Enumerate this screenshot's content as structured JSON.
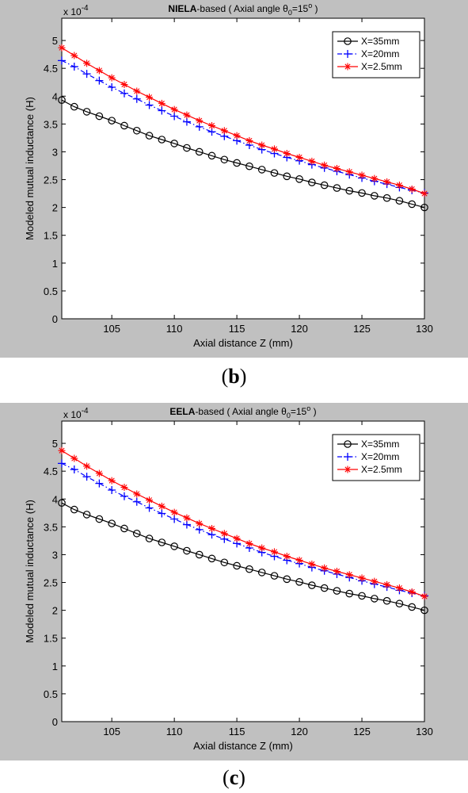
{
  "chart_data": [
    {
      "type": "line",
      "title_bold": "NIELA",
      "title_rest": "-based  ( Axial angle θ",
      "title_sub": "0",
      "title_eq": "=15",
      "title_sup": "o",
      "title_end": " )",
      "exponent_base": "x 10",
      "exponent_power": "-4",
      "xlabel": "Axial distance  Z (mm)",
      "ylabel": "Modeled mutual inductance (H)",
      "xlim": [
        101,
        130
      ],
      "ylim": [
        0,
        5.4
      ],
      "xticks": [
        105,
        110,
        115,
        120,
        125,
        130
      ],
      "yticks": [
        0,
        0.5,
        1,
        1.5,
        2,
        2.5,
        3,
        3.5,
        4,
        4.5,
        5
      ],
      "legend_position": "top-right",
      "x": [
        101,
        102,
        103,
        104,
        105,
        106,
        107,
        108,
        109,
        110,
        111,
        112,
        113,
        114,
        115,
        116,
        117,
        118,
        119,
        120,
        121,
        122,
        123,
        124,
        125,
        126,
        127,
        128,
        129,
        130
      ],
      "series": [
        {
          "name": "X=35mm",
          "color": "#000000",
          "marker": "circle",
          "dash": "solid",
          "values": [
            3.93,
            3.81,
            3.72,
            3.64,
            3.56,
            3.47,
            3.38,
            3.29,
            3.22,
            3.15,
            3.07,
            3.0,
            2.93,
            2.86,
            2.8,
            2.74,
            2.68,
            2.62,
            2.56,
            2.51,
            2.45,
            2.4,
            2.35,
            2.3,
            2.26,
            2.21,
            2.17,
            2.12,
            2.06,
            2.0
          ]
        },
        {
          "name": "X=20mm",
          "color": "#0000ff",
          "marker": "plus",
          "dash": "dashdot",
          "values": [
            4.64,
            4.53,
            4.4,
            4.28,
            4.16,
            4.05,
            3.95,
            3.84,
            3.74,
            3.64,
            3.54,
            3.45,
            3.36,
            3.28,
            3.2,
            3.12,
            3.04,
            2.97,
            2.9,
            2.84,
            2.77,
            2.71,
            2.65,
            2.59,
            2.53,
            2.47,
            2.42,
            2.36,
            2.31,
            2.26
          ]
        },
        {
          "name": "X=2.5mm",
          "color": "#ff0000",
          "marker": "star",
          "dash": "solid",
          "values": [
            4.87,
            4.73,
            4.59,
            4.46,
            4.33,
            4.21,
            4.09,
            3.98,
            3.87,
            3.76,
            3.66,
            3.56,
            3.47,
            3.38,
            3.29,
            3.2,
            3.12,
            3.05,
            2.97,
            2.9,
            2.83,
            2.76,
            2.7,
            2.64,
            2.58,
            2.52,
            2.46,
            2.4,
            2.33,
            2.25
          ]
        }
      ]
    },
    {
      "type": "line",
      "title_bold": "EELA",
      "title_rest": "-based  ( Axial angle θ",
      "title_sub": "0",
      "title_eq": "=15",
      "title_sup": "o",
      "title_end": " )",
      "exponent_base": "x 10",
      "exponent_power": "-4",
      "xlabel": "Axial distance  Z (mm)",
      "ylabel": "Modeled mutual inductance (H)",
      "xlim": [
        101,
        130
      ],
      "ylim": [
        0,
        5.4
      ],
      "xticks": [
        105,
        110,
        115,
        120,
        125,
        130
      ],
      "yticks": [
        0,
        0.5,
        1,
        1.5,
        2,
        2.5,
        3,
        3.5,
        4,
        4.5,
        5
      ],
      "legend_position": "top-right",
      "x": [
        101,
        102,
        103,
        104,
        105,
        106,
        107,
        108,
        109,
        110,
        111,
        112,
        113,
        114,
        115,
        116,
        117,
        118,
        119,
        120,
        121,
        122,
        123,
        124,
        125,
        126,
        127,
        128,
        129,
        130
      ],
      "series": [
        {
          "name": "X=35mm",
          "color": "#000000",
          "marker": "circle",
          "dash": "solid",
          "values": [
            3.93,
            3.81,
            3.72,
            3.64,
            3.56,
            3.47,
            3.38,
            3.29,
            3.22,
            3.15,
            3.07,
            3.0,
            2.93,
            2.86,
            2.8,
            2.74,
            2.68,
            2.62,
            2.56,
            2.51,
            2.45,
            2.4,
            2.35,
            2.3,
            2.26,
            2.21,
            2.17,
            2.12,
            2.06,
            2.0
          ]
        },
        {
          "name": "X=20mm",
          "color": "#0000ff",
          "marker": "plus",
          "dash": "dashdot",
          "values": [
            4.64,
            4.53,
            4.4,
            4.28,
            4.16,
            4.05,
            3.95,
            3.84,
            3.74,
            3.64,
            3.54,
            3.45,
            3.36,
            3.28,
            3.2,
            3.12,
            3.04,
            2.97,
            2.9,
            2.84,
            2.77,
            2.71,
            2.65,
            2.59,
            2.53,
            2.47,
            2.42,
            2.36,
            2.31,
            2.26
          ]
        },
        {
          "name": "X=2.5mm",
          "color": "#ff0000",
          "marker": "star",
          "dash": "solid",
          "values": [
            4.87,
            4.73,
            4.59,
            4.46,
            4.33,
            4.21,
            4.09,
            3.98,
            3.87,
            3.76,
            3.66,
            3.56,
            3.47,
            3.38,
            3.29,
            3.2,
            3.12,
            3.05,
            2.97,
            2.9,
            2.83,
            2.76,
            2.7,
            2.64,
            2.58,
            2.52,
            2.46,
            2.4,
            2.33,
            2.25
          ]
        }
      ]
    }
  ],
  "captions": {
    "b_open": "(",
    "b_letter": "b",
    "b_close": ")",
    "c_open": "(",
    "c_letter": "c",
    "c_close": ")"
  }
}
